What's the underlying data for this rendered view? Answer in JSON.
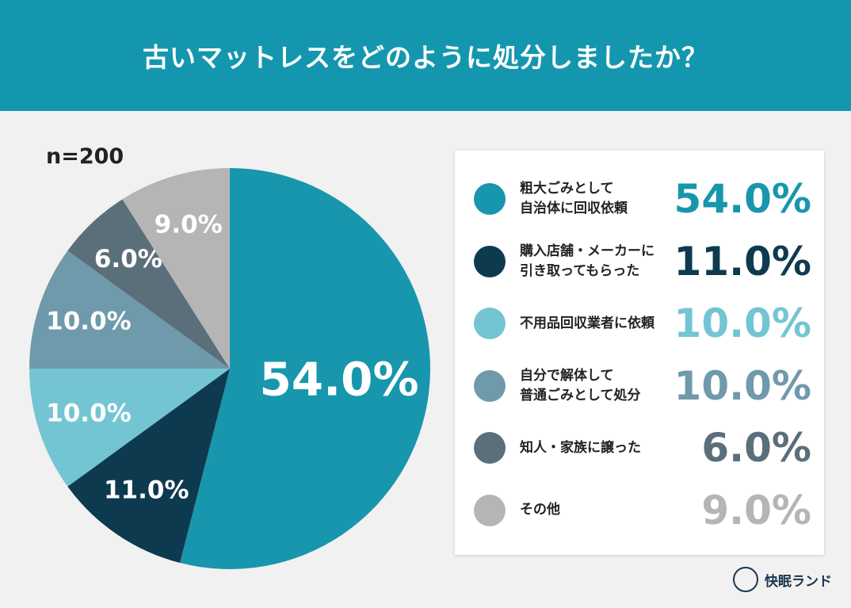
{
  "chart_data": {
    "type": "pie",
    "title": "古いマットレスをどのように処分しましたか？",
    "note": "n=200",
    "brand": "快眠ランド",
    "categories": [
      "粗大ごみとして\n自治体に回収依頼",
      "購入店舗・メーカーに\n引き取ってもらった",
      "不用品回収業者に依頼",
      "自分で解体して\n普通ごみとして処分",
      "知人・家族に譲った",
      "その他"
    ],
    "values": [
      54.0,
      11.0,
      10.0,
      10.0,
      6.0,
      9.0
    ],
    "value_labels": [
      "54.0%",
      "11.0%",
      "10.0%",
      "10.0%",
      "6.0%",
      "9.0%"
    ],
    "colors": [
      "#1896ad",
      "#0e3a50",
      "#74c5d3",
      "#6f9aab",
      "#5b6f7b",
      "#b5b5b5"
    ]
  }
}
